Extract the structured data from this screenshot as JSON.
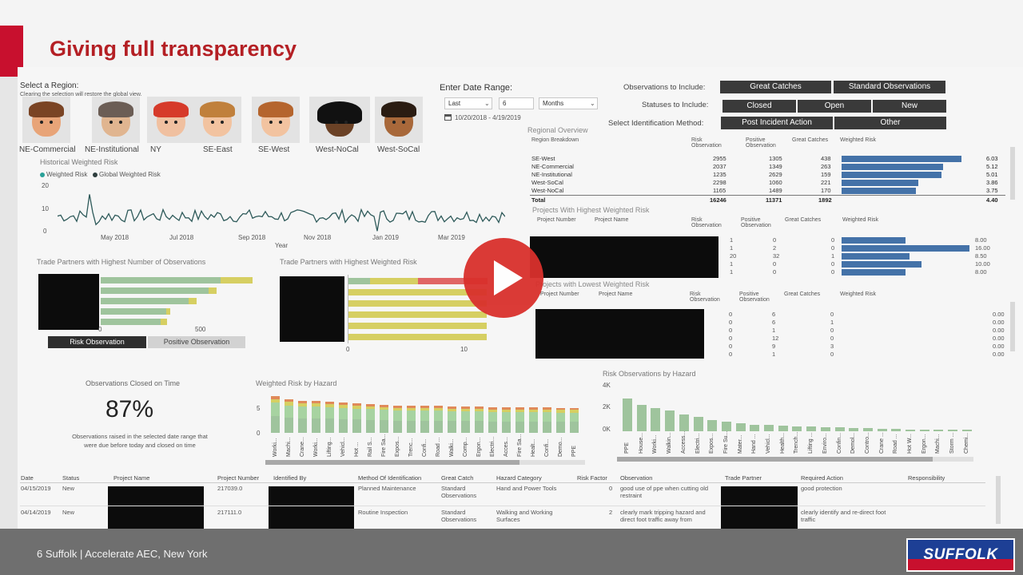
{
  "slide": {
    "title": "Giving full transparency",
    "footer_page": "6",
    "footer_text": "Suffolk  | Accelerate AEC, New York",
    "logo": "SUFFOLK"
  },
  "region": {
    "title": "Select a Region:",
    "hint": "Clearing the selection will restore the global view.",
    "regions": [
      {
        "label": "NE-Commercial",
        "skin": "#e8a478",
        "hair": "#7a4424"
      },
      {
        "label": "NE-Institutional",
        "skin": "#e0b590",
        "hair": "#6b5d55"
      },
      {
        "label": "NY",
        "skin": "#f0c0a0",
        "hair": "#d63a2a"
      },
      {
        "label": "SE-East",
        "skin": "#f2c3a0",
        "hair": "#c0803c"
      },
      {
        "label": "SE-West",
        "skin": "#f2c3a0",
        "hair": "#b5652e"
      },
      {
        "label": "West-NoCal",
        "skin": "#6b4226",
        "hair": "#111111"
      },
      {
        "label": "West-SoCal",
        "skin": "#a8683a",
        "hair": "#2a1c12"
      }
    ]
  },
  "date": {
    "title": "Enter Date Range:",
    "period": "Last",
    "count": "6",
    "unit": "Months",
    "range": "10/20/2018 - 4/19/2019"
  },
  "filters": {
    "obs_label": "Observations to Include:",
    "obs_opts": [
      "Great Catches",
      "Standard Observations"
    ],
    "status_label": "Statuses to Include:",
    "status_opts": [
      "Closed",
      "Open",
      "New"
    ],
    "method_label": "Select Identification Method:",
    "method_opts": [
      "Post Incident Action",
      "Other"
    ]
  },
  "historical": {
    "title": "Historical Weighted Risk",
    "legend": [
      "Weighted Risk",
      "Global Weighted Risk"
    ],
    "yticks": [
      "20",
      "10",
      "0"
    ],
    "xticks": [
      "May 2018",
      "Jul 2018",
      "Sep 2018",
      "Nov 2018",
      "Jan 2019",
      "Mar 2019"
    ],
    "xlabel": "Year",
    "color": "#2e5a5a"
  },
  "regional": {
    "title": "Regional Overview",
    "headers": [
      "Region Breakdown",
      "Risk Observation",
      "Positive Observation",
      "Great Catches",
      "Weighted Risk"
    ],
    "rows": [
      [
        "SE-West",
        "2955",
        "1305",
        "438",
        "6.03"
      ],
      [
        "NE-Commercial",
        "2037",
        "1349",
        "263",
        "5.12"
      ],
      [
        "NE-Institutional",
        "1235",
        "2629",
        "159",
        "5.01"
      ],
      [
        "West-SoCal",
        "2298",
        "1060",
        "221",
        "3.86"
      ],
      [
        "West-NoCal",
        "1165",
        "1489",
        "170",
        "3.75"
      ]
    ],
    "total": [
      "Total",
      "16246",
      "11371",
      "1892",
      "4.40"
    ],
    "bars": [
      6.03,
      5.12,
      5.01,
      3.86,
      3.75
    ]
  },
  "highest": {
    "title": "Projects With Highest Weighted Risk",
    "headers": [
      "Project Number",
      "Project Name",
      "Risk Observation",
      "Positive Observation",
      "Great Catches",
      "Weighted Risk"
    ],
    "rows": [
      [
        "1",
        "0",
        "0",
        "8.00"
      ],
      [
        "1",
        "2",
        "0",
        "16.00"
      ],
      [
        "20",
        "32",
        "1",
        "8.50"
      ],
      [
        "1",
        "0",
        "0",
        "10.00"
      ],
      [
        "1",
        "0",
        "0",
        "8.00"
      ]
    ],
    "bars": [
      8.0,
      16.0,
      8.5,
      10.0,
      8.0
    ]
  },
  "lowest": {
    "title": "Projects with Lowest Weighted Risk",
    "headers": [
      "Project Number",
      "Project Name",
      "Risk Observation",
      "Positive Observation",
      "Great Catches",
      "Weighted Risk"
    ],
    "rows": [
      [
        "0",
        "6",
        "0",
        "0.00"
      ],
      [
        "0",
        "6",
        "1",
        "0.00"
      ],
      [
        "0",
        "1",
        "0",
        "0.00"
      ],
      [
        "0",
        "12",
        "0",
        "0.00"
      ],
      [
        "0",
        "9",
        "3",
        "0.00"
      ],
      [
        "0",
        "1",
        "0",
        "0.00"
      ]
    ]
  },
  "trade_obs": {
    "title": "Trade Partners with Highest Number of Observations",
    "ticks": [
      "0",
      "500"
    ],
    "tabs": [
      "Risk Observation",
      "Positive Observation"
    ]
  },
  "trade_risk": {
    "title": "Trade Partners with Highest Weighted Risk",
    "ticks": [
      "0",
      "10"
    ]
  },
  "closed": {
    "title": "Observations Closed on Time",
    "value": "87%",
    "desc": "Observations raised in the selected date range that were due before today and closed on time"
  },
  "hazard_risk": {
    "title": "Weighted Risk by Hazard",
    "yticks": [
      "5",
      "0"
    ],
    "labels": [
      "Worki...",
      "Machi...",
      "Crane...",
      "Worki...",
      "Lifting...",
      "Vehicl...",
      "Hot ...",
      "Rail S...",
      "Fire Sa...",
      "Expos...",
      "Trenc...",
      "Confi...",
      "Road ...",
      "Walki...",
      "Comp...",
      "Ergon...",
      "Electri...",
      "Acces...",
      "Fire Sa...",
      "Healt...",
      "Confi...",
      "Demo...",
      "PPE"
    ]
  },
  "hazard_obs": {
    "title": "Risk Observations by Hazard",
    "yticks": [
      "4K",
      "2K",
      "0K"
    ],
    "labels": [
      "PPE",
      "House...",
      "Worki...",
      "Walkin...",
      "Access...",
      "Electri...",
      "Expos...",
      "Fire Su...",
      "Mater...",
      "Hand ...",
      "Vehicl...",
      "Health...",
      "Trench...",
      "Lifting ...",
      "Enviro...",
      "Confin...",
      "Demol...",
      "Contro...",
      "Crane ...",
      "Road ...",
      "Hot W...",
      "Ergon...",
      "Machi...",
      "Storm ...",
      "Chemi..."
    ],
    "values": [
      3000,
      2400,
      2100,
      1900,
      1500,
      1300,
      1000,
      850,
      750,
      600,
      550,
      500,
      430,
      400,
      360,
      330,
      300,
      260,
      230,
      200,
      180,
      160,
      140,
      120,
      100
    ]
  },
  "detail": {
    "headers": [
      "Date",
      "Status",
      "Project Name",
      "Project Number",
      "Identified By",
      "Method Of Identification",
      "Great Catch",
      "Hazard Category",
      "Risk Factor",
      "Observation",
      "Trade Partner",
      "Required Action",
      "Responsibility"
    ],
    "rows": [
      {
        "date": "04/15/2019",
        "status": "New",
        "number": "217039.0",
        "method": "Planned Maintenance",
        "catch": "Standard Observations",
        "hazard": "Hand and Power Tools",
        "factor": "0",
        "obs": "good use of ppe when cutting old restraint",
        "action": "good protection"
      },
      {
        "date": "04/14/2019",
        "status": "New",
        "number": "217111.0",
        "method": "Routine Inspection",
        "catch": "Standard Observations",
        "hazard": "Walking and Working Surfaces",
        "factor": "2",
        "obs": "clearly mark tripping hazard and direct foot traffic away from",
        "action": "clearly identify and re-direct foot traffic"
      }
    ]
  }
}
